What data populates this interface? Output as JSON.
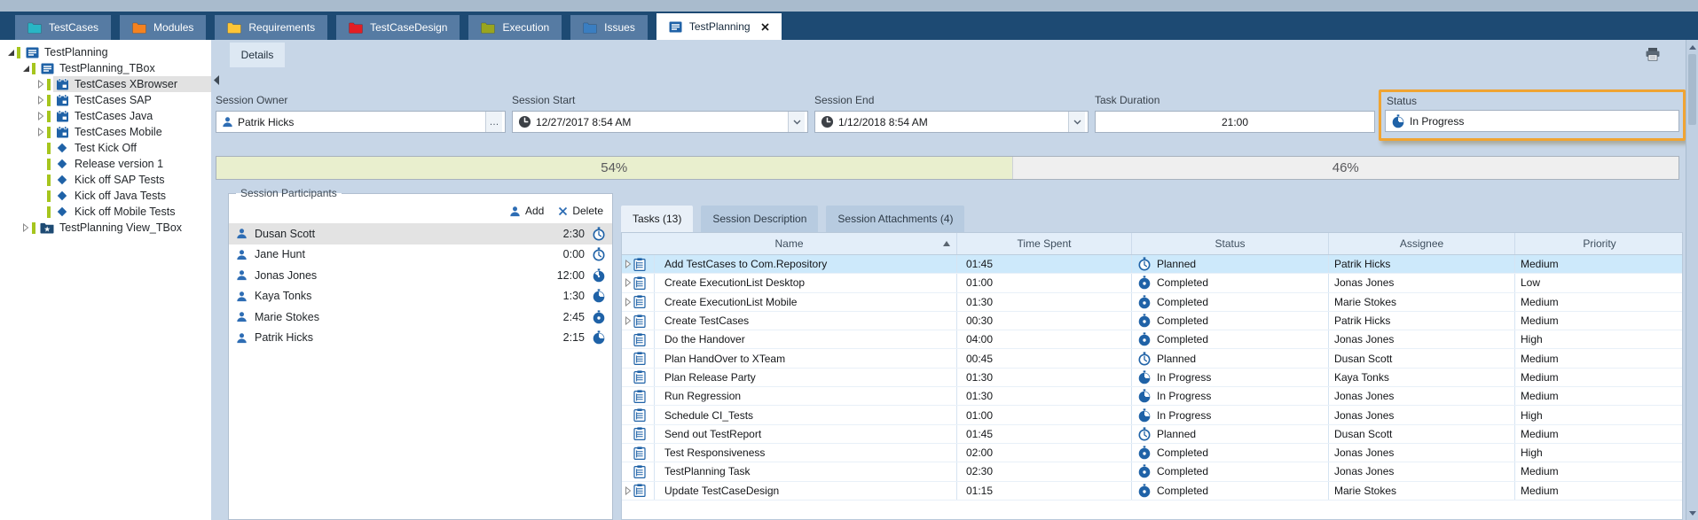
{
  "colors": {
    "tab_bar": "#1d4a73",
    "icon_blue": "#1f62a7",
    "highlight_orange": "#f0a432",
    "progress_done": "#e9efce",
    "selected_row": "#cde9fb",
    "tree_status_bar": "#a6c51e"
  },
  "top_tabs": [
    {
      "label": "TestCases",
      "icon": "folder",
      "color": "#29b6c5",
      "active": false
    },
    {
      "label": "Modules",
      "icon": "folder",
      "color": "#f5821f",
      "active": false
    },
    {
      "label": "Requirements",
      "icon": "folder",
      "color": "#fdc536",
      "active": false
    },
    {
      "label": "TestCaseDesign",
      "icon": "folder",
      "color": "#e31e24",
      "active": false
    },
    {
      "label": "Execution",
      "icon": "folder",
      "color": "#9aa51e",
      "active": false
    },
    {
      "label": "Issues",
      "icon": "folder",
      "color": "#3a7ec1",
      "active": false
    },
    {
      "label": "TestPlanning",
      "icon": "list",
      "color": "#1f62a7",
      "active": true
    }
  ],
  "tree": {
    "items": [
      {
        "label": "TestPlanning",
        "level": 0,
        "expander": "open",
        "icon": "list",
        "selected": false
      },
      {
        "label": "TestPlanning_TBox",
        "level": 1,
        "expander": "open",
        "icon": "list",
        "selected": false
      },
      {
        "label": "TestCases XBrowser",
        "level": 2,
        "expander": "closed",
        "icon": "planner",
        "selected": true
      },
      {
        "label": "TestCases SAP",
        "level": 2,
        "expander": "closed",
        "icon": "planner",
        "selected": false
      },
      {
        "label": "TestCases Java",
        "level": 2,
        "expander": "closed",
        "icon": "planner",
        "selected": false
      },
      {
        "label": "TestCases Mobile",
        "level": 2,
        "expander": "closed",
        "icon": "planner",
        "selected": false
      },
      {
        "label": "Test Kick Off",
        "level": 2,
        "expander": "none",
        "icon": "diamond",
        "selected": false
      },
      {
        "label": "Release version 1",
        "level": 2,
        "expander": "none",
        "icon": "diamond",
        "selected": false
      },
      {
        "label": "Kick off SAP Tests",
        "level": 2,
        "expander": "none",
        "icon": "diamond",
        "selected": false
      },
      {
        "label": "Kick off Java Tests",
        "level": 2,
        "expander": "none",
        "icon": "diamond",
        "selected": false
      },
      {
        "label": "Kick off Mobile Tests",
        "level": 2,
        "expander": "none",
        "icon": "diamond",
        "selected": false
      },
      {
        "label": "TestPlanning View_TBox",
        "level": 1,
        "expander": "closed",
        "icon": "folderstar",
        "selected": false
      }
    ]
  },
  "details": {
    "tab_label": "Details",
    "fields": {
      "session_owner": {
        "label": "Session Owner",
        "value": "Patrik Hicks",
        "button": "…"
      },
      "session_start": {
        "label": "Session Start",
        "value": "12/27/2017 8:54 AM"
      },
      "session_end": {
        "label": "Session End",
        "value": "1/12/2018 8:54 AM"
      },
      "task_duration": {
        "label": "Task Duration",
        "value": "21:00"
      },
      "status": {
        "label": "Status",
        "value": "In Progress"
      }
    },
    "progress": {
      "left_label": "54%",
      "right_label": "46%",
      "left_percent": 54.4
    },
    "participants": {
      "title": "Session Participants",
      "add_label": "Add",
      "delete_label": "Delete",
      "rows": [
        {
          "name": "Dusan Scott",
          "time": "2:30",
          "clock": "outline",
          "selected": true
        },
        {
          "name": "Jane Hunt",
          "time": "0:00",
          "clock": "outline",
          "selected": false
        },
        {
          "name": "Jonas Jones",
          "time": "12:00",
          "clock": "threequarter",
          "selected": false
        },
        {
          "name": "Kaya Tonks",
          "time": "1:30",
          "clock": "wedge",
          "selected": false
        },
        {
          "name": "Marie Stokes",
          "time": "2:45",
          "clock": "solid",
          "selected": false
        },
        {
          "name": "Patrik Hicks",
          "time": "2:15",
          "clock": "wedge",
          "selected": false
        }
      ]
    },
    "tasks": {
      "tabs": [
        {
          "label": "Tasks (13)",
          "active": true
        },
        {
          "label": "Session Description",
          "active": false
        },
        {
          "label": "Session Attachments (4)",
          "active": false
        }
      ],
      "columns": [
        "Name",
        "Time Spent",
        "Status",
        "Assignee",
        "Priority"
      ],
      "sorted_column": "Name",
      "rows": [
        {
          "name": "Add TestCases to Com.Repository",
          "time": "01:45",
          "status": "Planned",
          "assignee": "Patrik Hicks",
          "priority": "Medium",
          "expandable": true,
          "selected": true
        },
        {
          "name": "Create ExecutionList Desktop",
          "time": "01:00",
          "status": "Completed",
          "assignee": "Jonas Jones",
          "priority": "Low",
          "expandable": true,
          "selected": false
        },
        {
          "name": "Create ExecutionList Mobile",
          "time": "01:30",
          "status": "Completed",
          "assignee": "Marie Stokes",
          "priority": "Medium",
          "expandable": true,
          "selected": false
        },
        {
          "name": "Create TestCases",
          "time": "00:30",
          "status": "Completed",
          "assignee": "Patrik Hicks",
          "priority": "Medium",
          "expandable": true,
          "selected": false
        },
        {
          "name": "Do the Handover",
          "time": "04:00",
          "status": "Completed",
          "assignee": "Jonas Jones",
          "priority": "High",
          "expandable": false,
          "selected": false
        },
        {
          "name": "Plan HandOver to XTeam",
          "time": "00:45",
          "status": "Planned",
          "assignee": "Dusan Scott",
          "priority": "Medium",
          "expandable": false,
          "selected": false
        },
        {
          "name": "Plan Release Party",
          "time": "01:30",
          "status": "In Progress",
          "assignee": "Kaya Tonks",
          "priority": "Medium",
          "expandable": false,
          "selected": false
        },
        {
          "name": "Run Regression",
          "time": "01:30",
          "status": "In Progress",
          "assignee": "Jonas Jones",
          "priority": "Medium",
          "expandable": false,
          "selected": false
        },
        {
          "name": "Schedule CI_Tests",
          "time": "01:00",
          "status": "In Progress",
          "assignee": "Jonas Jones",
          "priority": "High",
          "expandable": false,
          "selected": false
        },
        {
          "name": "Send out TestReport",
          "time": "01:45",
          "status": "Planned",
          "assignee": "Dusan Scott",
          "priority": "Medium",
          "expandable": false,
          "selected": false
        },
        {
          "name": "Test Responsiveness",
          "time": "02:00",
          "status": "Completed",
          "assignee": "Jonas Jones",
          "priority": "High",
          "expandable": false,
          "selected": false
        },
        {
          "name": "TestPlanning Task",
          "time": "02:30",
          "status": "Completed",
          "assignee": "Jonas Jones",
          "priority": "Medium",
          "expandable": false,
          "selected": false
        },
        {
          "name": "Update TestCaseDesign",
          "time": "01:15",
          "status": "Completed",
          "assignee": "Marie Stokes",
          "priority": "Medium",
          "expandable": true,
          "selected": false
        }
      ]
    }
  }
}
